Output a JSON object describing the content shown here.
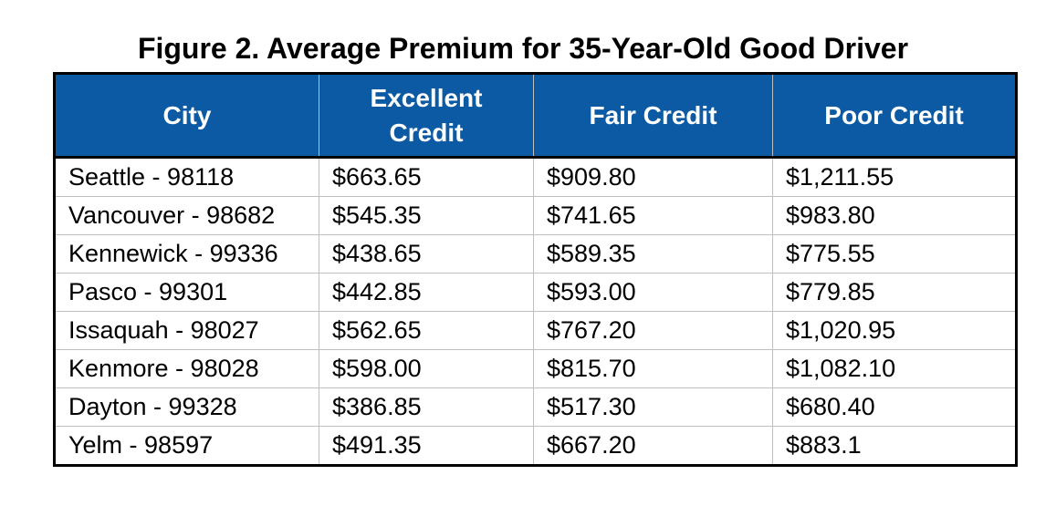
{
  "title": "Figure 2. Average Premium for 35-Year-Old Good Driver",
  "columns": [
    "City",
    "Excellent Credit",
    "Fair Credit",
    "Poor Credit"
  ],
  "rows": [
    [
      "Seattle - 98118",
      "$663.65",
      "$909.80",
      "$1,211.55"
    ],
    [
      "Vancouver - 98682",
      "$545.35",
      "$741.65",
      "$983.80"
    ],
    [
      "Kennewick - 99336",
      "$438.65",
      "$589.35",
      "$775.55"
    ],
    [
      "Pasco - 99301",
      "$442.85",
      "$593.00",
      "$779.85"
    ],
    [
      "Issaquah - 98027",
      "$562.65",
      "$767.20",
      "$1,020.95"
    ],
    [
      "Kenmore - 98028",
      "$598.00",
      "$815.70",
      "$1,082.10"
    ],
    [
      "Dayton - 99328",
      "$386.85",
      "$517.30",
      "$680.40"
    ],
    [
      "Yelm - 98597",
      "$491.35",
      "$667.20",
      "$883.1"
    ]
  ],
  "colors": {
    "header_bg": "#0b5aa3",
    "header_text": "#ffffff",
    "grid": "#bfbfbf"
  }
}
